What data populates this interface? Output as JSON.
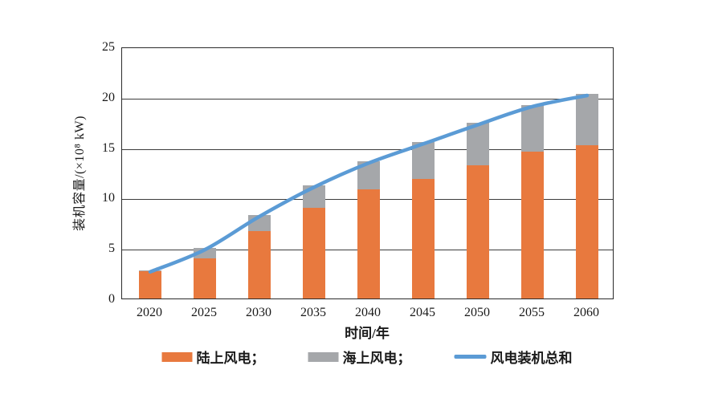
{
  "chart_data": {
    "type": "bar",
    "stacked": true,
    "title": "",
    "xlabel": "时间/年",
    "ylabel": "装机容量/(×10⁸ kW)",
    "categories": [
      "2020",
      "2025",
      "2030",
      "2035",
      "2040",
      "2045",
      "2050",
      "2055",
      "2060"
    ],
    "series": [
      {
        "name": "陆上风电",
        "type": "bar",
        "color": "#E8793E",
        "values": [
          2.7,
          4.0,
          6.7,
          9.0,
          10.8,
          11.9,
          13.2,
          14.6,
          15.2
        ]
      },
      {
        "name": "海上风电",
        "type": "bar",
        "color": "#A5A7AA",
        "values": [
          0.1,
          1.0,
          1.6,
          2.2,
          2.8,
          3.6,
          4.2,
          4.6,
          5.1
        ]
      },
      {
        "name": "风电装机总和",
        "type": "line",
        "color": "#5B9BD5",
        "values": [
          2.8,
          5.0,
          8.3,
          11.2,
          13.6,
          15.5,
          17.4,
          19.2,
          20.3
        ]
      }
    ],
    "ylim": [
      0,
      25
    ],
    "yticks": [
      0,
      5,
      10,
      15,
      20,
      25
    ],
    "grid": true,
    "legend_position": "bottom"
  },
  "legend": {
    "items": [
      {
        "label": "陆上风电；",
        "swatch": "bar",
        "color": "#E8793E"
      },
      {
        "label": "海上风电；",
        "swatch": "bar",
        "color": "#A5A7AA"
      },
      {
        "label": "风电装机总和",
        "swatch": "line",
        "color": "#5B9BD5"
      }
    ]
  },
  "colors": {
    "onshore": "#E8793E",
    "offshore": "#A5A7AA",
    "total_line": "#5B9BD5",
    "axis": "#2b2b2b",
    "gridline": "#3c3c3c"
  }
}
